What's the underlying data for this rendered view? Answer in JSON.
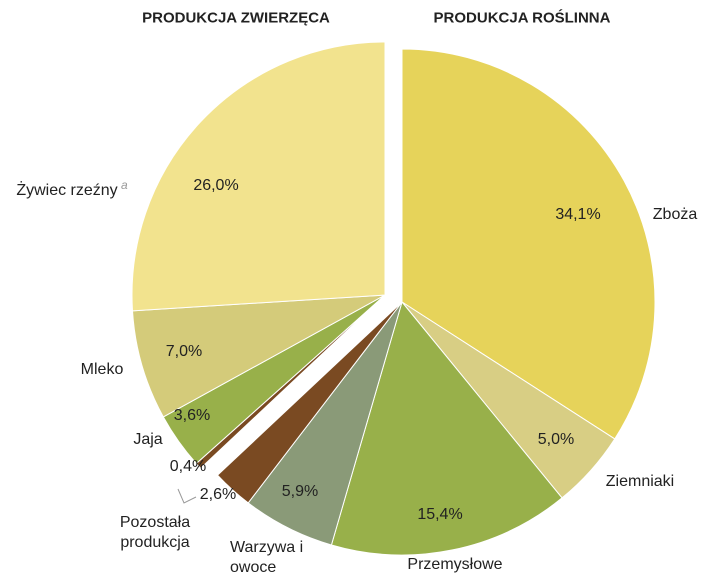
{
  "chart_data": {
    "type": "pie",
    "groups": [
      {
        "title": "PRODUKCJA ROŚLINNA",
        "categories": [
          "Zboża",
          "Ziemniaki",
          "Przemysłowe",
          "Warzywa i owoce",
          "Pozostała produkcja"
        ],
        "values": [
          34.1,
          5.0,
          15.4,
          5.9,
          2.6
        ],
        "value_labels": [
          "34,1%",
          "5,0%",
          "15,4%",
          "5,9%",
          "2,6%"
        ],
        "colors": [
          "#e6d35a",
          "#d8ce84",
          "#98b04a",
          "#8a9a78",
          "#7a4a22"
        ]
      },
      {
        "title": "PRODUKCJA ZWIERZĘCA",
        "categories": [
          null,
          "Jaja",
          "Mleko",
          "Żywiec rzeźny"
        ],
        "values": [
          0.4,
          3.6,
          7.0,
          26.0
        ],
        "value_labels": [
          "0,4%",
          "3,6%",
          "7,0%",
          "26,0%"
        ],
        "colors": [
          "#7a4a22",
          "#98b04a",
          "#d4cb7a",
          "#f2e38e"
        ],
        "note_marks": [
          null,
          null,
          null,
          "a"
        ]
      }
    ]
  }
}
